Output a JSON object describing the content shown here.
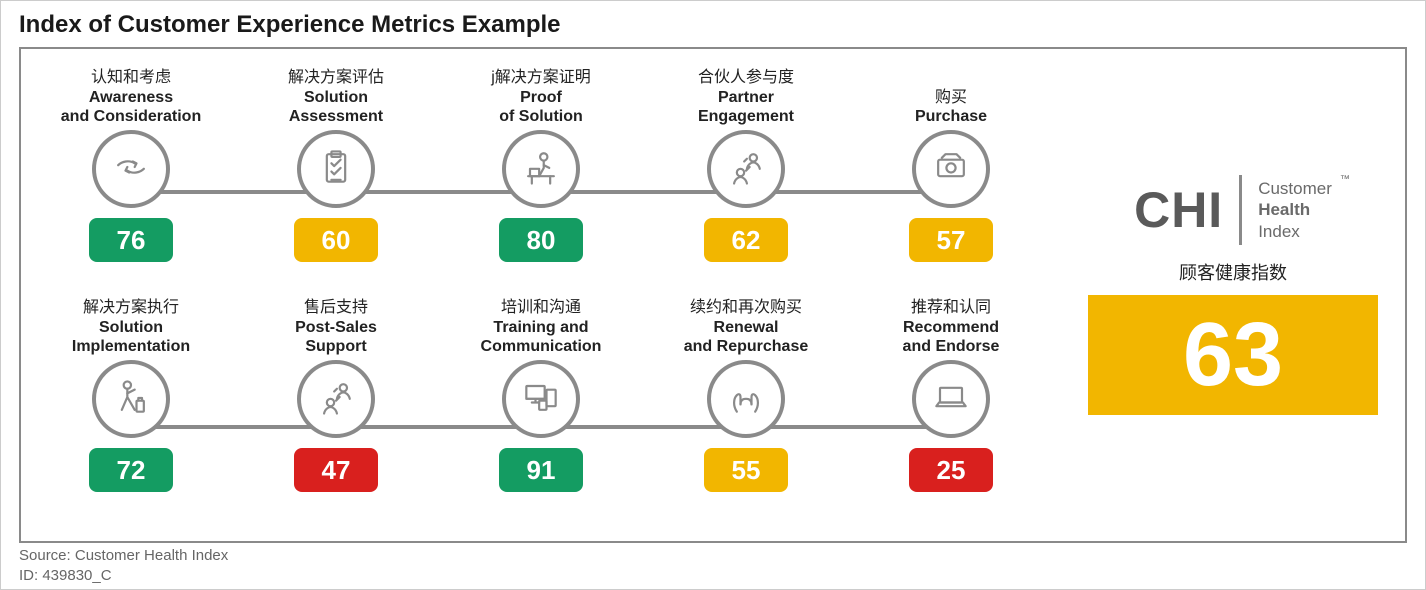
{
  "colors": {
    "green": "#149c62",
    "amber": "#f2b600",
    "red": "#d9201e",
    "stroke": "#8a8a8a",
    "text": "#222222",
    "muted": "#666666"
  },
  "title": "Index of Customer Experience Metrics Example",
  "footer": {
    "source": "Source: Customer Health Index",
    "id": "ID: 439830_C"
  },
  "chi": {
    "abbr": "CHI",
    "line1": "Customer",
    "line2": "Health",
    "line3": "Index",
    "tm": "™",
    "zh": "顾客健康指数",
    "score": 63,
    "score_color": "#f2b600"
  },
  "stages": [
    {
      "row": 0,
      "zh": "认知和考虑",
      "en": "Awareness\nand Consideration",
      "icon": "hands-arrows",
      "score": 76,
      "color": "#149c62"
    },
    {
      "row": 0,
      "zh": "解决方案评估",
      "en": "Solution\nAssessment",
      "icon": "clipboard",
      "score": 60,
      "color": "#f2b600"
    },
    {
      "row": 0,
      "zh": "j解决方案证明",
      "en": "Proof\nof Solution",
      "icon": "person-desk",
      "score": 80,
      "color": "#149c62"
    },
    {
      "row": 0,
      "zh": "合伙人参与度",
      "en": "Partner\nEngagement",
      "icon": "people-talk",
      "score": 62,
      "color": "#f2b600"
    },
    {
      "row": 0,
      "zh": "购买",
      "en": "Purchase",
      "icon": "camera-cash",
      "score": 57,
      "color": "#f2b600"
    },
    {
      "row": 1,
      "zh": "解决方案执行",
      "en": "Solution\nImplementation",
      "icon": "traveler",
      "score": 72,
      "color": "#149c62"
    },
    {
      "row": 1,
      "zh": "售后支持",
      "en": "Post-Sales\nSupport",
      "icon": "people-talk",
      "score": 47,
      "color": "#d9201e"
    },
    {
      "row": 1,
      "zh": "培训和沟通",
      "en": "Training and\nCommunication",
      "icon": "devices",
      "score": 91,
      "color": "#149c62"
    },
    {
      "row": 1,
      "zh": "续约和再次购买",
      "en": "Renewal\nand Repurchase",
      "icon": "open-hands",
      "score": 55,
      "color": "#f2b600"
    },
    {
      "row": 1,
      "zh": "推荐和认同",
      "en": "Recommend\nand Endorse",
      "icon": "laptop",
      "score": 25,
      "color": "#d9201e"
    }
  ]
}
